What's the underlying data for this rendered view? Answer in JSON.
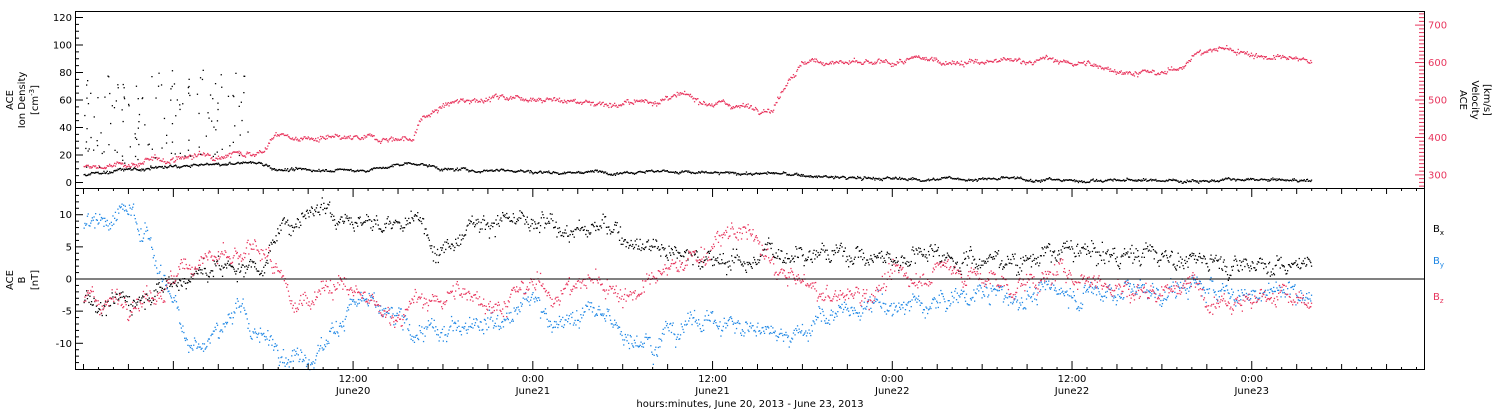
{
  "colors": {
    "black": "#000000",
    "pink": "#e8365e",
    "blue": "#1e87e5"
  },
  "x_axis": {
    "caption": "hours:minutes, June 20, 2013 - June 23, 2013",
    "range_hours": [
      -6.5,
      83.5
    ],
    "ticks": [
      {
        "hour": 12,
        "time": "12:00",
        "date": "June20"
      },
      {
        "hour": 24,
        "time": "0:00",
        "date": "June21"
      },
      {
        "hour": 36,
        "time": "12:00",
        "date": "June21"
      },
      {
        "hour": 48,
        "time": "0:00",
        "date": "June22"
      },
      {
        "hour": 60,
        "time": "12:00",
        "date": "June22"
      },
      {
        "hour": 72,
        "time": "0:00",
        "date": "June23"
      }
    ]
  },
  "panel_top": {
    "left_label": {
      "line1": "ACE",
      "line2": "Ion Density",
      "line3_pre": "[cm",
      "line3_sup": "-3",
      "line3_post": "]"
    },
    "right_label": {
      "line1": "ACE",
      "line2": "Velocity",
      "line3": "[km/s]"
    },
    "left_ticks": [
      "0",
      "20",
      "40",
      "60",
      "80",
      "100",
      "120"
    ],
    "right_ticks": [
      "300",
      "400",
      "500",
      "600",
      "700"
    ]
  },
  "panel_bottom": {
    "left_label": {
      "line1": "ACE",
      "line2": "B",
      "line3": "[nT]"
    },
    "left_ticks": [
      "-10",
      "-5",
      "0",
      "5",
      "10"
    ],
    "legend": [
      {
        "base": "B",
        "sub": "x",
        "color": "#000000"
      },
      {
        "base": "B",
        "sub": "y",
        "color": "#1e87e5"
      },
      {
        "base": "B",
        "sub": "z",
        "color": "#e8365e"
      }
    ]
  },
  "chart_data": [
    {
      "type": "scatter",
      "series": [
        {
          "name": "Ion Density",
          "axis": "left",
          "ylim": [
            -4,
            124
          ],
          "x": [
            -6,
            -4,
            -2,
            0,
            2,
            4,
            5,
            6,
            7,
            8,
            10,
            12,
            14,
            16,
            18,
            20,
            22,
            24,
            28,
            32,
            36,
            40,
            44,
            48,
            52,
            56,
            60,
            64,
            68,
            72,
            76
          ],
          "y": [
            6,
            9,
            10,
            12,
            13,
            14,
            15,
            14,
            10,
            9,
            10,
            9,
            11,
            15,
            10,
            9,
            10,
            8,
            8,
            9,
            7,
            7,
            4,
            3,
            3,
            3,
            2,
            2,
            2,
            2,
            2
          ]
        },
        {
          "name": "Velocity",
          "axis": "right",
          "ylim": [
            265,
            735
          ],
          "x": [
            -6,
            -4,
            -2,
            0,
            2,
            4,
            6,
            6.5,
            7,
            8,
            10,
            12,
            14,
            16,
            16.5,
            17,
            18,
            20,
            22,
            24,
            26,
            28,
            30,
            32,
            34,
            36,
            38,
            40,
            40.5,
            41,
            42,
            44,
            46,
            48,
            50,
            52,
            54,
            56,
            58,
            60,
            62,
            64,
            66,
            67,
            68,
            70,
            72,
            74,
            76
          ],
          "y": [
            320,
            325,
            335,
            345,
            355,
            360,
            365,
            395,
            410,
            400,
            395,
            395,
            400,
            400,
            450,
            460,
            485,
            505,
            510,
            510,
            500,
            495,
            490,
            500,
            510,
            495,
            485,
            480,
            520,
            560,
            600,
            605,
            595,
            600,
            610,
            605,
            600,
            605,
            610,
            600,
            590,
            575,
            570,
            585,
            620,
            640,
            625,
            610,
            605
          ]
        }
      ]
    },
    {
      "type": "scatter",
      "ylim": [
        -14,
        14
      ],
      "series": [
        {
          "name": "Bx",
          "x": [
            -6,
            -4,
            -2,
            0,
            2,
            4,
            6,
            8,
            10,
            12,
            14,
            16,
            18,
            20,
            22,
            24,
            26,
            28,
            30,
            32,
            34,
            36,
            38,
            40,
            42,
            44,
            46,
            48,
            50,
            52,
            54,
            56,
            58,
            60,
            62,
            64,
            66,
            68,
            70,
            72,
            74,
            76
          ],
          "y": [
            -3,
            -4,
            -2,
            0,
            1,
            2,
            3,
            10,
            12,
            10,
            8,
            9,
            5,
            10,
            9,
            8,
            8,
            8,
            7,
            6,
            4,
            3,
            3,
            4,
            5,
            4,
            4,
            3,
            5,
            4,
            3,
            3,
            4,
            4,
            4,
            4,
            4,
            3,
            3,
            3,
            2,
            3
          ]
        },
        {
          "name": "By",
          "x": [
            -6,
            -4,
            -3,
            -2,
            -1,
            0,
            1,
            2,
            4,
            6,
            8,
            10,
            12,
            14,
            16,
            18,
            20,
            22,
            24,
            26,
            28,
            30,
            32,
            34,
            36,
            38,
            40,
            42,
            44,
            46,
            48,
            50,
            52,
            54,
            56,
            58,
            60,
            62,
            64,
            66,
            68,
            70,
            72,
            74,
            76
          ],
          "y": [
            9,
            10,
            11,
            8,
            2,
            -3,
            -9,
            -10,
            -5,
            -9,
            -12,
            -10,
            -3,
            -6,
            -8,
            -9,
            -5,
            -6,
            -3,
            -7,
            -5,
            -8,
            -9,
            -7,
            -6,
            -8,
            -7,
            -8,
            -5,
            -5,
            -4,
            -4,
            -3,
            -2,
            -3,
            -2,
            -2,
            -2,
            -1,
            -2,
            -1,
            -2,
            -2,
            -2,
            -1
          ]
        },
        {
          "name": "Bz",
          "x": [
            -6,
            -4,
            -2,
            0,
            1,
            2,
            4,
            6,
            8,
            10,
            12,
            14,
            16,
            18,
            20,
            22,
            24,
            26,
            28,
            30,
            32,
            34,
            36,
            38,
            40,
            42,
            44,
            46,
            48,
            50,
            52,
            54,
            56,
            58,
            60,
            62,
            64,
            66,
            68,
            70,
            72,
            74,
            76
          ],
          "y": [
            -4,
            -3,
            -2,
            0,
            2,
            4,
            2,
            5,
            -5,
            0,
            -2,
            -6,
            -4,
            -3,
            -2,
            -4,
            -1,
            -2,
            0,
            -2,
            -1,
            3,
            5,
            8,
            2,
            -1,
            -3,
            -2,
            0,
            1,
            2,
            0,
            -1,
            0,
            1,
            0,
            -2,
            -1,
            -1,
            -2,
            -3,
            -2,
            -5
          ]
        }
      ]
    }
  ]
}
